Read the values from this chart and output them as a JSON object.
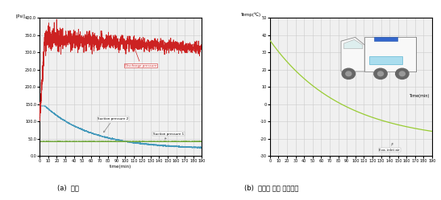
{
  "chart_a": {
    "title": "(a)  압력",
    "xlabel": "time(min)",
    "ylabel": "[Psi]",
    "ylim": [
      0,
      400
    ],
    "yticks": [
      0.0,
      50.0,
      100.0,
      150.0,
      200.0,
      250.0,
      300.0,
      350.0,
      400.0
    ],
    "ytick_labels": [
      "0.0",
      "50.0",
      "100.0",
      "150.0",
      "200.0",
      "250.0",
      "300.0",
      "350.0",
      "400.0"
    ],
    "xlim": [
      0,
      190
    ],
    "xticks": [
      0,
      10,
      20,
      30,
      40,
      50,
      60,
      70,
      80,
      90,
      100,
      110,
      120,
      130,
      140,
      150,
      160,
      170,
      180,
      190
    ],
    "discharge_color": "#cc2222",
    "suction_blue_color": "#4499bb",
    "suction_green_color": "#77aa44",
    "discharge_label": "Discharge pressure",
    "suction2_label": "Suction pressure 2",
    "suction1_label": "Suction pressure 1"
  },
  "chart_b": {
    "title": "(b)  증발기 입구 공기온도",
    "xlabel": "Time(min)",
    "ylabel": "Temp(℃)",
    "ylim": [
      -30,
      50
    ],
    "yticks": [
      -30,
      -20,
      -10,
      0,
      10,
      20,
      30,
      40,
      50
    ],
    "ytick_labels": [
      "-30",
      "-20",
      "-10",
      "0",
      "10",
      "20",
      "30",
      "40",
      "50"
    ],
    "xlim": [
      0,
      190
    ],
    "xticks": [
      0,
      10,
      20,
      30,
      40,
      50,
      60,
      70,
      80,
      90,
      100,
      110,
      120,
      130,
      140,
      150,
      160,
      170,
      180,
      190
    ],
    "line_color": "#99cc33",
    "label": "Eva. inlet air"
  },
  "bg_color": "#f0f0f0",
  "grid_color": "#cccccc"
}
